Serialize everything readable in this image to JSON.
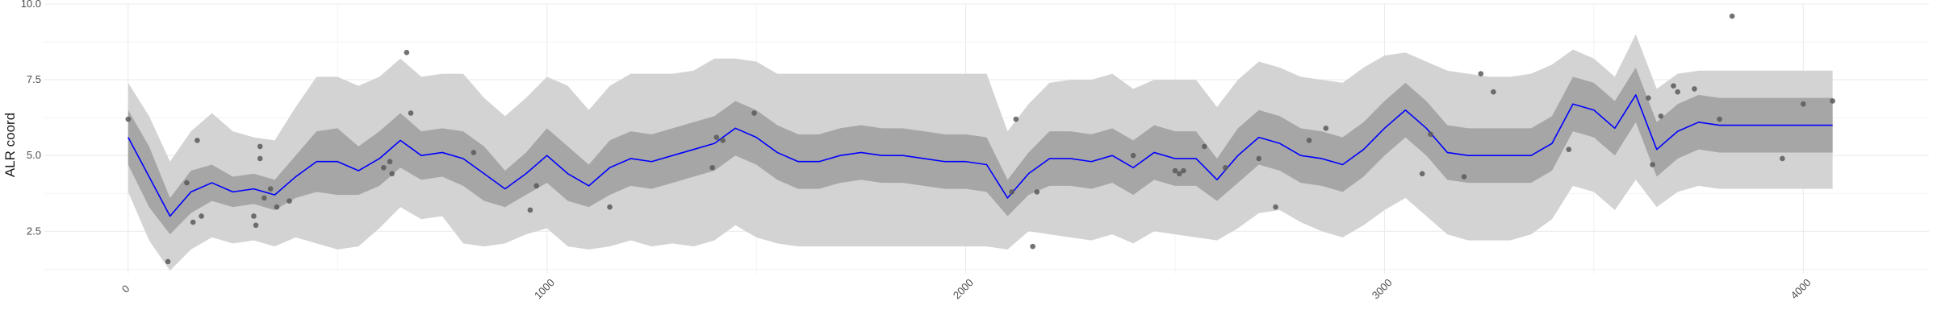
{
  "chart_data": {
    "type": "line",
    "title": "",
    "xlabel": "",
    "ylabel": "ALR coord",
    "xlim": [
      -200,
      4300
    ],
    "ylim": [
      1.1,
      10.0
    ],
    "grid": true,
    "x_ticks": [
      0,
      1000,
      2000,
      3000,
      4000
    ],
    "x_tick_labels": [
      "0",
      "1000",
      "2000",
      "3000",
      "4000"
    ],
    "y_ticks": [
      2.5,
      5.0,
      7.5,
      10.0
    ],
    "y_tick_labels": [
      "2.5",
      "5.0",
      "7.5",
      "10.0"
    ],
    "colors": {
      "line": "#0000ff",
      "points": "#595959",
      "inner_band": "#a6a6a6",
      "outer_band": "#d3d3d3",
      "grid": "#ebebeb"
    },
    "series": [
      {
        "kind": "line",
        "x": [
          0,
          50,
          100,
          150,
          200,
          250,
          300,
          350,
          400,
          450,
          500,
          550,
          600,
          650,
          700,
          750,
          800,
          850,
          900,
          950,
          1000,
          1050,
          1100,
          1150,
          1200,
          1250,
          1300,
          1350,
          1400,
          1450,
          1500,
          1550,
          1600,
          1650,
          1700,
          1750,
          1800,
          1850,
          1900,
          1950,
          2000,
          2050,
          2100,
          2150,
          2200,
          2250,
          2300,
          2350,
          2400,
          2450,
          2500,
          2550,
          2600,
          2650,
          2700,
          2750,
          2800,
          2850,
          2900,
          2950,
          3000,
          3050,
          3100,
          3150,
          3200,
          3250,
          3300,
          3350,
          3400,
          3450,
          3500,
          3550,
          3600,
          3650,
          3700,
          3750,
          3800,
          3850,
          3900,
          3950,
          4000,
          4050,
          4070
        ],
        "y": [
          5.6,
          4.3,
          3.0,
          3.8,
          4.1,
          3.8,
          3.9,
          3.7,
          4.3,
          4.8,
          4.8,
          4.5,
          4.9,
          5.5,
          5.0,
          5.1,
          4.9,
          4.4,
          3.9,
          4.4,
          5.0,
          4.4,
          4.0,
          4.6,
          4.9,
          4.8,
          5.0,
          5.2,
          5.4,
          5.9,
          5.6,
          5.1,
          4.8,
          4.8,
          5.0,
          5.1,
          5.0,
          5.0,
          4.9,
          4.8,
          4.8,
          4.7,
          3.6,
          4.4,
          4.9,
          4.9,
          4.8,
          5.0,
          4.6,
          5.1,
          4.9,
          4.9,
          4.2,
          5.0,
          5.6,
          5.4,
          5.0,
          4.9,
          4.7,
          5.2,
          5.9,
          6.5,
          5.9,
          5.1,
          5.0,
          5.0,
          5.0,
          5.0,
          5.4,
          6.7,
          6.5,
          5.9,
          7.0,
          5.2,
          5.8,
          6.1,
          6.0,
          6.0,
          6.0,
          6.0,
          6.0,
          6.0,
          6.0
        ]
      },
      {
        "kind": "band-inner",
        "x": [
          0,
          50,
          100,
          150,
          200,
          250,
          300,
          350,
          400,
          450,
          500,
          550,
          600,
          650,
          700,
          750,
          800,
          850,
          900,
          950,
          1000,
          1050,
          1100,
          1150,
          1200,
          1250,
          1300,
          1350,
          1400,
          1450,
          1500,
          1550,
          1600,
          1650,
          1700,
          1750,
          1800,
          1850,
          1900,
          1950,
          2000,
          2050,
          2100,
          2150,
          2200,
          2250,
          2300,
          2350,
          2400,
          2450,
          2500,
          2550,
          2600,
          2650,
          2700,
          2750,
          2800,
          2850,
          2900,
          2950,
          3000,
          3050,
          3100,
          3150,
          3200,
          3250,
          3300,
          3350,
          3400,
          3450,
          3500,
          3550,
          3600,
          3650,
          3700,
          3750,
          3800,
          3850,
          3900,
          3950,
          4000,
          4050,
          4070
        ],
        "lower": [
          4.7,
          3.3,
          2.4,
          3.1,
          3.5,
          3.3,
          3.4,
          3.2,
          3.6,
          3.8,
          3.7,
          3.7,
          4.0,
          4.6,
          4.2,
          4.3,
          4.0,
          3.5,
          3.3,
          3.7,
          4.1,
          3.5,
          3.3,
          3.7,
          4.0,
          3.9,
          4.1,
          4.3,
          4.5,
          5.0,
          4.7,
          4.2,
          3.9,
          3.9,
          4.1,
          4.2,
          4.1,
          4.1,
          4.0,
          3.9,
          3.9,
          3.8,
          3.0,
          3.7,
          4.0,
          4.0,
          3.9,
          4.1,
          3.7,
          4.2,
          4.0,
          4.0,
          3.5,
          4.1,
          4.7,
          4.5,
          4.1,
          4.0,
          3.8,
          4.3,
          5.0,
          5.6,
          5.0,
          4.2,
          4.1,
          4.1,
          4.1,
          4.1,
          4.5,
          5.8,
          5.6,
          5.0,
          6.1,
          4.3,
          4.9,
          5.2,
          5.1,
          5.1,
          5.1,
          5.1,
          5.1,
          5.1,
          5.1
        ],
        "upper": [
          6.5,
          5.3,
          3.6,
          4.5,
          4.7,
          4.3,
          4.4,
          4.2,
          5.0,
          5.8,
          5.9,
          5.3,
          5.8,
          6.4,
          5.8,
          5.9,
          5.8,
          5.3,
          4.5,
          5.1,
          5.9,
          5.3,
          4.7,
          5.5,
          5.8,
          5.7,
          5.9,
          6.1,
          6.3,
          6.8,
          6.5,
          6.0,
          5.7,
          5.7,
          5.9,
          6.0,
          5.9,
          5.9,
          5.8,
          5.7,
          5.7,
          5.6,
          4.2,
          5.1,
          5.8,
          5.8,
          5.7,
          5.9,
          5.5,
          6.0,
          5.8,
          5.8,
          4.9,
          5.9,
          6.5,
          6.3,
          5.9,
          5.8,
          5.6,
          6.1,
          6.8,
          7.4,
          6.8,
          6.0,
          5.9,
          5.9,
          5.9,
          5.9,
          6.3,
          7.6,
          7.4,
          6.8,
          7.9,
          6.1,
          6.7,
          7.0,
          6.9,
          6.9,
          6.9,
          6.9,
          6.9,
          6.9,
          6.9
        ]
      },
      {
        "kind": "band-outer",
        "x": [
          0,
          50,
          100,
          150,
          200,
          250,
          300,
          350,
          400,
          450,
          500,
          550,
          600,
          650,
          700,
          750,
          800,
          850,
          900,
          950,
          1000,
          1050,
          1100,
          1150,
          1200,
          1250,
          1300,
          1350,
          1400,
          1450,
          1500,
          1550,
          1600,
          1650,
          1700,
          1750,
          1800,
          1850,
          1900,
          1950,
          2000,
          2050,
          2100,
          2150,
          2200,
          2250,
          2300,
          2350,
          2400,
          2450,
          2500,
          2550,
          2600,
          2650,
          2700,
          2750,
          2800,
          2850,
          2900,
          2950,
          3000,
          3050,
          3100,
          3150,
          3200,
          3250,
          3300,
          3350,
          3400,
          3450,
          3500,
          3550,
          3600,
          3650,
          3700,
          3750,
          3800,
          3850,
          3900,
          3950,
          4000,
          4050,
          4070
        ],
        "lower": [
          3.8,
          2.2,
          1.2,
          1.9,
          2.3,
          2.1,
          2.2,
          2.0,
          2.3,
          2.1,
          1.9,
          2.0,
          2.6,
          3.3,
          2.9,
          3.0,
          2.1,
          2.0,
          2.1,
          2.4,
          2.6,
          2.0,
          1.9,
          2.0,
          2.2,
          2.0,
          2.1,
          2.0,
          2.2,
          2.7,
          2.3,
          2.1,
          2.0,
          2.0,
          2.0,
          2.0,
          2.0,
          2.0,
          2.0,
          2.0,
          2.0,
          2.0,
          1.9,
          2.5,
          2.4,
          2.3,
          2.2,
          2.4,
          2.1,
          2.5,
          2.4,
          2.3,
          2.2,
          2.6,
          3.1,
          3.2,
          2.8,
          2.5,
          2.3,
          2.7,
          3.2,
          3.6,
          3.0,
          2.4,
          2.2,
          2.2,
          2.2,
          2.4,
          2.9,
          4.0,
          3.8,
          3.2,
          4.2,
          3.3,
          3.8,
          4.0,
          3.9,
          3.9,
          3.9,
          3.9,
          3.9,
          3.9,
          3.9
        ],
        "upper": [
          7.4,
          6.3,
          4.8,
          5.8,
          6.4,
          5.8,
          5.6,
          5.5,
          6.6,
          7.6,
          7.6,
          7.3,
          7.6,
          8.2,
          7.6,
          7.7,
          7.7,
          6.9,
          6.3,
          6.9,
          7.6,
          7.3,
          6.5,
          7.3,
          7.7,
          7.7,
          7.7,
          7.8,
          8.2,
          8.2,
          8.1,
          7.7,
          7.7,
          7.7,
          7.7,
          7.7,
          7.7,
          7.7,
          7.7,
          7.7,
          7.7,
          7.7,
          5.8,
          6.7,
          7.4,
          7.5,
          7.5,
          7.7,
          7.2,
          7.5,
          7.5,
          7.5,
          6.6,
          7.5,
          8.1,
          7.9,
          7.6,
          7.5,
          7.4,
          7.9,
          8.3,
          8.4,
          8.1,
          7.8,
          7.7,
          7.6,
          7.6,
          7.7,
          8.0,
          8.5,
          8.2,
          7.6,
          9.0,
          7.2,
          7.7,
          7.8,
          7.8,
          7.8,
          7.8,
          7.8,
          7.8,
          7.8,
          7.8
        ]
      },
      {
        "kind": "points",
        "x": [
          0,
          95,
          140,
          155,
          165,
          175,
          300,
          305,
          315,
          315,
          325,
          340,
          355,
          385,
          610,
          625,
          630,
          665,
          675,
          825,
          960,
          975,
          1150,
          1395,
          1405,
          1420,
          1495,
          2110,
          2120,
          2160,
          2170,
          2400,
          2500,
          2510,
          2520,
          2570,
          2620,
          2700,
          2740,
          2820,
          2860,
          3090,
          3110,
          3190,
          3230,
          3260,
          3440,
          3630,
          3640,
          3660,
          3690,
          3700,
          3740,
          3800,
          3830,
          3950,
          4000,
          4070
        ],
        "y": [
          6.2,
          1.5,
          4.1,
          2.8,
          5.5,
          3.0,
          3.0,
          2.7,
          4.9,
          5.3,
          3.6,
          3.9,
          3.3,
          3.5,
          4.6,
          4.8,
          4.4,
          8.4,
          6.4,
          5.1,
          3.2,
          4.0,
          3.3,
          4.6,
          5.6,
          5.5,
          6.4,
          3.8,
          6.2,
          2.0,
          3.8,
          5.0,
          4.5,
          4.4,
          4.5,
          5.3,
          4.6,
          4.9,
          3.3,
          5.5,
          5.9,
          4.4,
          5.7,
          4.3,
          7.7,
          7.1,
          5.2,
          6.9,
          4.7,
          6.3,
          7.3,
          7.1,
          7.2,
          6.2,
          9.6,
          4.9,
          6.7,
          6.8
        ]
      }
    ]
  }
}
